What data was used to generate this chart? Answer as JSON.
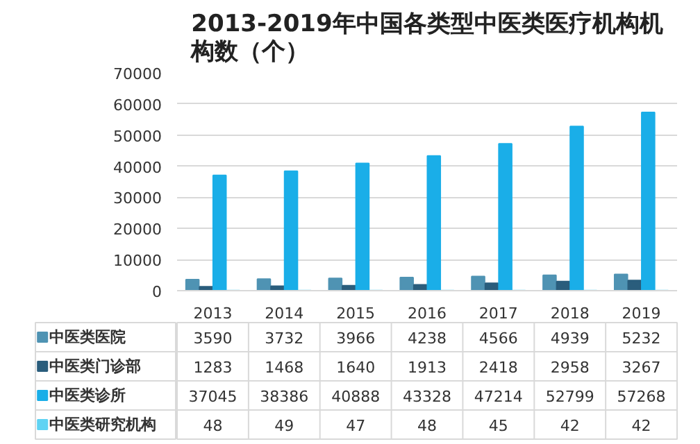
{
  "chart_data": {
    "type": "bar",
    "title": "2013-2019年中国各类型中医类医疗机构机构数（个）",
    "categories": [
      "2013",
      "2014",
      "2015",
      "2016",
      "2017",
      "2018",
      "2019"
    ],
    "series": [
      {
        "name": "中医类医院",
        "color": "#4f93b3",
        "values": [
          3590,
          3732,
          3966,
          4238,
          4566,
          4939,
          5232
        ]
      },
      {
        "name": "中医类门诊部",
        "color": "#2a5d7c",
        "values": [
          1283,
          1468,
          1640,
          1913,
          2418,
          2958,
          3267
        ]
      },
      {
        "name": "中医类诊所",
        "color": "#1aaee8",
        "values": [
          37045,
          38386,
          40888,
          43328,
          47214,
          52799,
          57268
        ]
      },
      {
        "name": "中医类研究机构",
        "color": "#5fd3f3",
        "values": [
          48,
          49,
          47,
          48,
          45,
          42,
          42
        ]
      }
    ],
    "ylim": [
      0,
      70000
    ],
    "yticks": [
      0,
      10000,
      20000,
      30000,
      40000,
      50000,
      60000,
      70000
    ],
    "grid": "y",
    "legend": "bottom",
    "data_labels": true
  }
}
